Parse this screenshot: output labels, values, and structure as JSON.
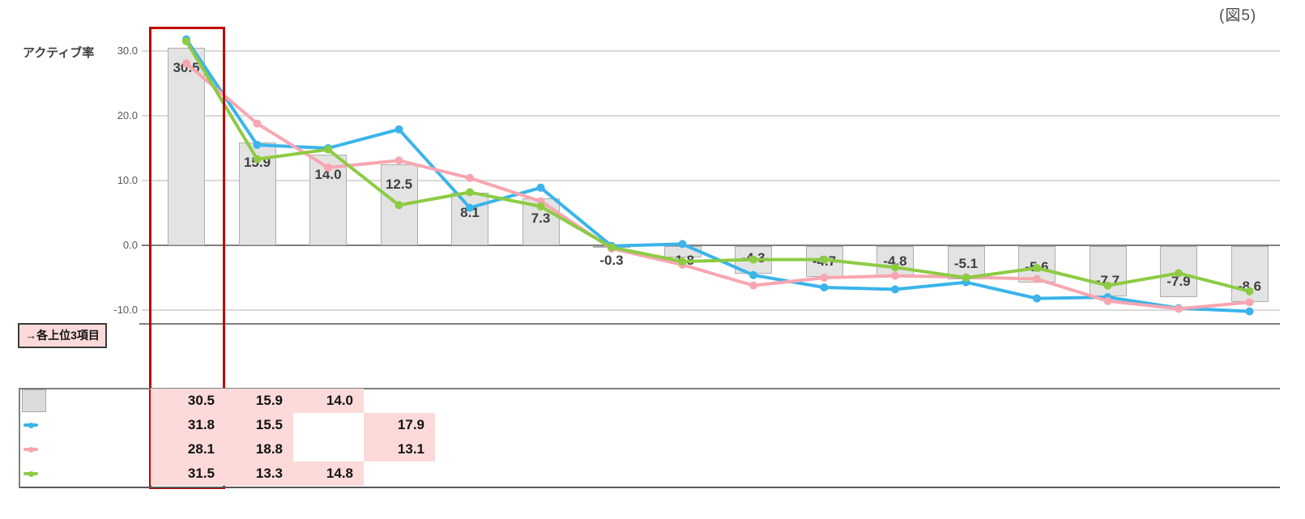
{
  "figure_label": "(図5)",
  "annotation": {
    "label": "→各上位3項目"
  },
  "chart_data": {
    "type": "combo-bar-line",
    "title": "(図5)",
    "ylabel": "アクティブ率",
    "xlabel": "",
    "grid": true,
    "yticks_labels": [
      "30.0",
      "20.0",
      "10.0",
      "0.0",
      "-10.0"
    ],
    "ytick_values": [
      30,
      20,
      10,
      0,
      -10
    ],
    "ylim": [
      -12.5,
      34
    ],
    "n_categories": 16,
    "category_labels_visible": false,
    "bar_series": {
      "name": "bar-series",
      "values": [
        30.5,
        15.9,
        14.0,
        12.5,
        8.1,
        7.3,
        -0.3,
        -1.8,
        -4.3,
        -4.7,
        -4.8,
        -5.1,
        -5.6,
        -7.7,
        -7.9,
        -8.6
      ],
      "data_labels": [
        "30.5",
        "15.9",
        "14.0",
        "12.5",
        "8.1",
        "7.3",
        "-0.3",
        "-1.8",
        "-4.3",
        "-4.7",
        "-4.8",
        "-5.1",
        "-5.6",
        "-7.7",
        "-7.9",
        "-8.6"
      ]
    },
    "line_series": [
      {
        "name": "blue-line",
        "color": "#3ab4ea",
        "values": [
          31.8,
          15.5,
          15.0,
          17.9,
          5.8,
          8.9,
          -0.1,
          0.2,
          -4.6,
          -6.5,
          -6.8,
          -5.7,
          -8.2,
          -8.0,
          -9.7,
          -10.2
        ]
      },
      {
        "name": "pink-line",
        "color": "#f8a6b1",
        "values": [
          28.1,
          18.8,
          12.0,
          13.1,
          10.4,
          6.8,
          -0.5,
          -3.0,
          -6.2,
          -5.0,
          -4.7,
          -4.9,
          -5.2,
          -8.6,
          -9.8,
          -8.8
        ]
      },
      {
        "name": "green-line",
        "color": "#8dcb43",
        "values": [
          31.5,
          13.3,
          14.8,
          6.2,
          8.2,
          6.0,
          -0.3,
          -2.5,
          -2.2,
          -2.2,
          -3.4,
          -5.0,
          -3.5,
          -6.2,
          -4.3,
          -7.1
        ]
      }
    ],
    "highlight_box": {
      "color": "#c00000",
      "category_index": 0
    },
    "legend_position": "table-left-column",
    "table": {
      "rows": [
        {
          "legend": "bar-series",
          "values": [
            "30.5",
            "15.9",
            "14.0",
            null
          ]
        },
        {
          "legend": "blue-line",
          "values": [
            "31.8",
            "15.5",
            null,
            "17.9"
          ]
        },
        {
          "legend": "pink-line",
          "values": [
            "28.1",
            "18.8",
            null,
            "13.1"
          ]
        },
        {
          "legend": "green-line",
          "values": [
            "31.5",
            "13.3",
            "14.8",
            null
          ]
        }
      ]
    }
  },
  "colors": {
    "bar_fill": "#e3e3e3",
    "bar_border": "#aeaeae",
    "grid_light": "#d9d9d9",
    "grid_dark": "#7f7f7f",
    "highlight_red": "#c00000",
    "cell_pink": "#fcdada",
    "label_text": "#3f3f3f",
    "tick_text": "#595959",
    "table_text": "#111111"
  }
}
